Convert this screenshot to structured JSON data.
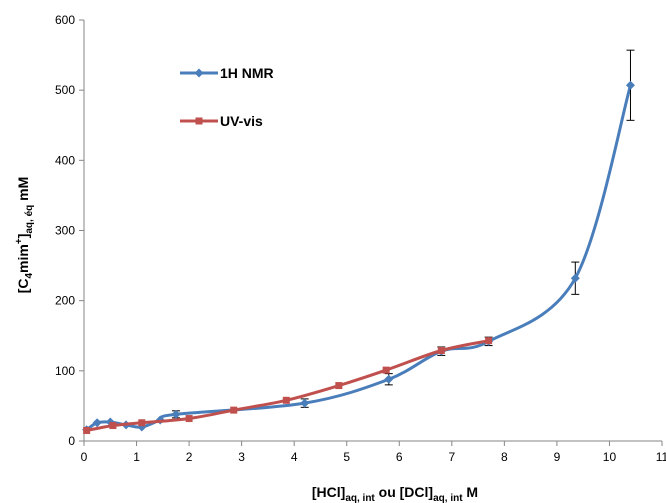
{
  "chart_data": {
    "type": "line",
    "title": "",
    "xlabel": "[HCl]aq, int ou [DCl]aq, int M",
    "ylabel": "[C4mim+]aq, éq mM",
    "xlim": [
      0,
      11
    ],
    "ylim": [
      0,
      600
    ],
    "x_ticks": [
      "0",
      "1",
      "2",
      "3",
      "4",
      "5",
      "6",
      "7",
      "8",
      "9",
      "10",
      "11"
    ],
    "y_ticks": [
      "0",
      "100",
      "200",
      "300",
      "400",
      "500",
      "600"
    ],
    "grid": false,
    "legend_position": "top-left",
    "series": [
      {
        "name": "1H NMR",
        "color": "#4a7ebb",
        "marker": "diamond",
        "x": [
          0.05,
          0.25,
          0.5,
          0.8,
          1.1,
          1.45,
          1.75,
          4.2,
          5.8,
          6.8,
          7.7,
          9.35,
          10.4
        ],
        "y": [
          16,
          26,
          27,
          23,
          20,
          30,
          38,
          54,
          88,
          128,
          142,
          232,
          507
        ],
        "error": [
          0,
          0,
          0,
          0,
          0,
          0,
          5,
          6,
          8,
          6,
          6,
          23,
          50
        ]
      },
      {
        "name": "UV-vis",
        "color": "#c0504d",
        "marker": "square",
        "x": [
          0.05,
          0.55,
          1.1,
          2.0,
          2.85,
          3.85,
          4.85,
          5.75,
          6.8,
          7.7
        ],
        "y": [
          15,
          22,
          26,
          32,
          44,
          58,
          79,
          101,
          129,
          143
        ],
        "error": [
          0,
          0,
          0,
          0,
          0,
          0,
          0,
          0,
          0,
          0
        ]
      }
    ]
  }
}
